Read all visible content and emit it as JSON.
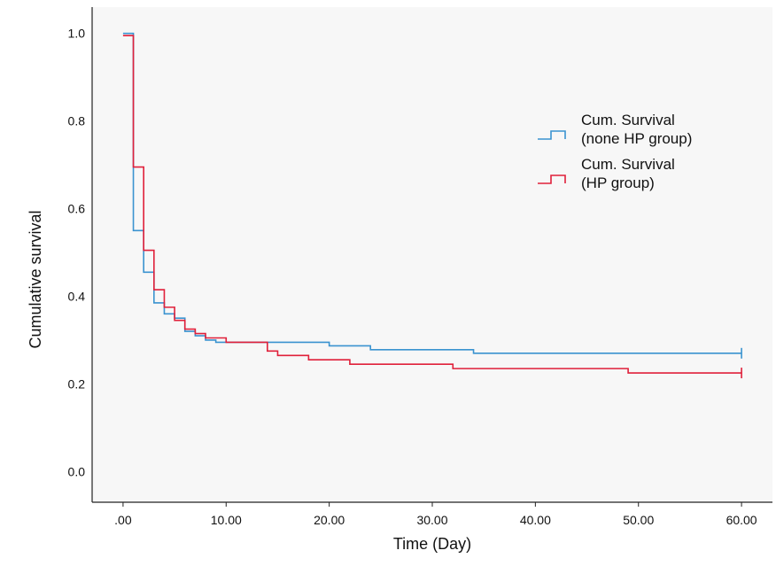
{
  "chart_data": {
    "type": "line",
    "subtype": "kaplan-meier step",
    "title": "",
    "xlabel": "Time (Day)",
    "ylabel": "Cumulative survival",
    "xlim": [
      -3,
      63
    ],
    "ylim": [
      -0.07,
      1.06
    ],
    "x_ticks": [
      0,
      10,
      20,
      30,
      40,
      50,
      60
    ],
    "x_tick_labels": [
      ".00",
      "10.00",
      "20.00",
      "30.00",
      "40.00",
      "50.00",
      "60.00"
    ],
    "y_ticks": [
      0,
      0.2,
      0.4,
      0.6,
      0.8,
      1.0
    ],
    "y_tick_labels": [
      "0.0",
      "0.2",
      "0.4",
      "0.6",
      "0.8",
      "1.0"
    ],
    "grid": false,
    "legend_position": "right",
    "background": "#f7f7f7",
    "series": [
      {
        "name": "Cum. Survival\n(none HP group)",
        "legend_lines": [
          "Cum. Survival",
          "(none HP group)"
        ],
        "color": "#3a93d0",
        "step_x": [
          0,
          1,
          2,
          3,
          4,
          5,
          6,
          7,
          8,
          9,
          10,
          14,
          20,
          24,
          34,
          60
        ],
        "step_y": [
          1.0,
          0.55,
          0.455,
          0.385,
          0.36,
          0.35,
          0.32,
          0.31,
          0.3,
          0.295,
          0.295,
          0.295,
          0.287,
          0.278,
          0.27,
          0.27
        ],
        "censor_at": 60
      },
      {
        "name": "Cum. Survival\n(HP group)",
        "legend_lines": [
          "Cum. Survival",
          "(HP group)"
        ],
        "color": "#e0203a",
        "step_x": [
          0,
          1,
          2,
          3,
          4,
          5,
          6,
          7,
          8,
          10,
          14,
          15,
          18,
          22,
          32,
          49,
          60
        ],
        "step_y": [
          0.995,
          0.695,
          0.505,
          0.415,
          0.375,
          0.345,
          0.325,
          0.315,
          0.305,
          0.295,
          0.275,
          0.265,
          0.255,
          0.245,
          0.235,
          0.225,
          0.225
        ],
        "censor_at": 60
      }
    ]
  }
}
